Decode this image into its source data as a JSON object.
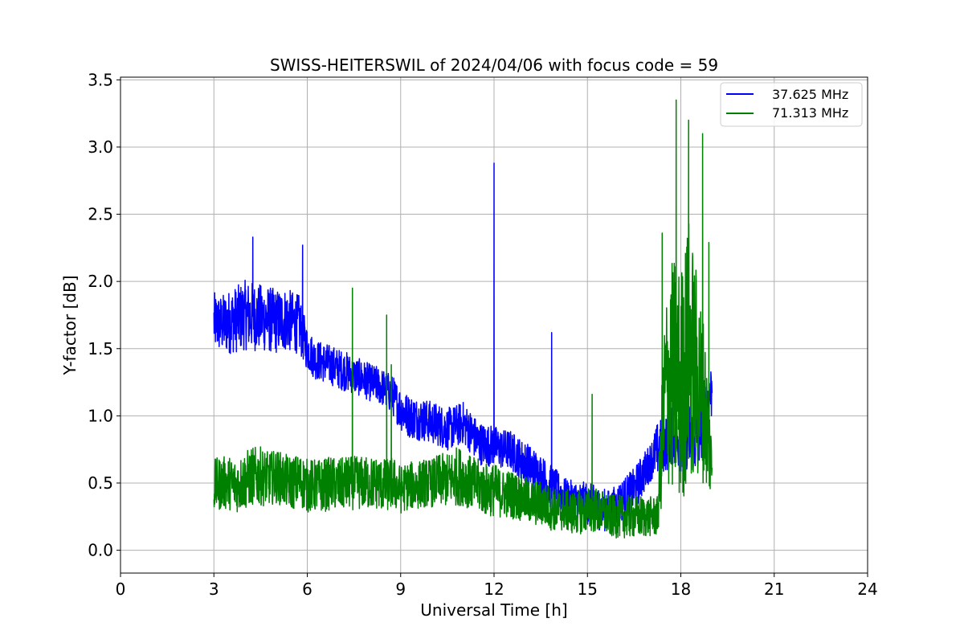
{
  "chart_data": {
    "type": "line",
    "title": "SWISS-HEITERSWIL of 2024/04/06 with focus code = 59",
    "xlabel": "Universal Time [h]",
    "ylabel": "Y-factor [dB]",
    "xlim": [
      0,
      24
    ],
    "ylim": [
      -0.17,
      3.52
    ],
    "xticks": [
      0,
      3,
      6,
      9,
      12,
      15,
      18,
      21,
      24
    ],
    "xtick_labels": [
      "0",
      "3",
      "6",
      "9",
      "12",
      "15",
      "18",
      "21",
      "24"
    ],
    "yticks": [
      0.0,
      0.5,
      1.0,
      1.5,
      2.0,
      2.5,
      3.0,
      3.5
    ],
    "ytick_labels": [
      "0.0",
      "0.5",
      "1.0",
      "1.5",
      "2.0",
      "2.5",
      "3.0",
      "3.5"
    ],
    "grid": true,
    "legend_position": "top-right",
    "series": [
      {
        "name": "37.625 MHz",
        "color": "#0000ff",
        "x": [
          3.0,
          3.25,
          3.5,
          3.75,
          4.0,
          4.25,
          4.5,
          4.75,
          5.0,
          5.25,
          5.5,
          5.75,
          6.0,
          6.25,
          6.5,
          6.75,
          7.0,
          7.25,
          7.5,
          7.75,
          8.0,
          8.25,
          8.5,
          8.75,
          9.0,
          9.25,
          9.5,
          9.75,
          10.0,
          10.25,
          10.5,
          10.75,
          11.0,
          11.25,
          11.5,
          11.75,
          12.0,
          12.25,
          12.5,
          12.75,
          13.0,
          13.25,
          13.5,
          13.75,
          14.0,
          14.25,
          14.5,
          14.75,
          15.0,
          15.25,
          15.5,
          15.75,
          16.0,
          16.25,
          16.5,
          16.75,
          17.0,
          17.25,
          17.5,
          17.75,
          18.0,
          18.25,
          18.5,
          18.75,
          19.0
        ],
        "y_mean": [
          1.7,
          1.68,
          1.7,
          1.72,
          1.75,
          1.74,
          1.73,
          1.72,
          1.7,
          1.72,
          1.7,
          1.68,
          1.5,
          1.42,
          1.4,
          1.38,
          1.35,
          1.33,
          1.3,
          1.28,
          1.25,
          1.23,
          1.2,
          1.15,
          1.05,
          1.0,
          0.98,
          0.97,
          0.95,
          0.93,
          0.9,
          0.92,
          0.95,
          0.88,
          0.8,
          0.78,
          0.78,
          0.75,
          0.75,
          0.7,
          0.65,
          0.6,
          0.55,
          0.48,
          0.45,
          0.4,
          0.38,
          0.37,
          0.35,
          0.32,
          0.3,
          0.3,
          0.35,
          0.4,
          0.45,
          0.55,
          0.65,
          0.75,
          0.8,
          0.85,
          0.8,
          0.85,
          0.8,
          1.0,
          1.2
        ],
        "spread": [
          0.22,
          0.22,
          0.24,
          0.25,
          0.26,
          0.26,
          0.25,
          0.25,
          0.24,
          0.24,
          0.23,
          0.22,
          0.16,
          0.15,
          0.15,
          0.15,
          0.15,
          0.15,
          0.14,
          0.14,
          0.14,
          0.14,
          0.14,
          0.15,
          0.16,
          0.16,
          0.16,
          0.16,
          0.16,
          0.16,
          0.16,
          0.16,
          0.16,
          0.16,
          0.16,
          0.16,
          0.15,
          0.15,
          0.15,
          0.15,
          0.16,
          0.17,
          0.17,
          0.17,
          0.15,
          0.14,
          0.14,
          0.14,
          0.16,
          0.16,
          0.16,
          0.15,
          0.16,
          0.16,
          0.16,
          0.16,
          0.14,
          0.2,
          0.22,
          0.22,
          0.22,
          0.25,
          0.25,
          0.25,
          0.22
        ],
        "spikes": [
          [
            12.0,
            2.88
          ],
          [
            13.85,
            1.62
          ],
          [
            4.25,
            2.33
          ],
          [
            5.85,
            2.27
          ]
        ]
      },
      {
        "name": "71.313 MHz",
        "color": "#008000",
        "x": [
          3.0,
          3.25,
          3.5,
          3.75,
          4.0,
          4.25,
          4.5,
          4.75,
          5.0,
          5.25,
          5.5,
          5.75,
          6.0,
          6.25,
          6.5,
          6.75,
          7.0,
          7.25,
          7.5,
          7.75,
          8.0,
          8.25,
          8.5,
          8.75,
          9.0,
          9.25,
          9.5,
          9.75,
          10.0,
          10.25,
          10.5,
          10.75,
          11.0,
          11.25,
          11.5,
          11.75,
          12.0,
          12.25,
          12.5,
          12.75,
          13.0,
          13.25,
          13.5,
          13.75,
          14.0,
          14.25,
          14.5,
          14.75,
          15.0,
          15.25,
          15.5,
          15.75,
          16.0,
          16.25,
          16.5,
          16.75,
          17.0,
          17.25,
          17.5,
          17.75,
          18.0,
          18.25,
          18.5,
          18.75,
          19.0
        ],
        "y_mean": [
          0.48,
          0.5,
          0.5,
          0.48,
          0.52,
          0.55,
          0.55,
          0.53,
          0.55,
          0.52,
          0.5,
          0.52,
          0.48,
          0.48,
          0.48,
          0.5,
          0.48,
          0.5,
          0.5,
          0.5,
          0.5,
          0.5,
          0.48,
          0.5,
          0.45,
          0.48,
          0.48,
          0.5,
          0.5,
          0.52,
          0.52,
          0.55,
          0.55,
          0.5,
          0.48,
          0.45,
          0.45,
          0.42,
          0.42,
          0.4,
          0.38,
          0.35,
          0.35,
          0.32,
          0.3,
          0.3,
          0.28,
          0.28,
          0.3,
          0.3,
          0.28,
          0.25,
          0.25,
          0.25,
          0.25,
          0.25,
          0.25,
          0.25,
          1.2,
          1.3,
          1.2,
          1.5,
          1.3,
          1.1,
          0.6
        ],
        "spread": [
          0.2,
          0.2,
          0.2,
          0.2,
          0.22,
          0.22,
          0.22,
          0.2,
          0.2,
          0.2,
          0.2,
          0.2,
          0.2,
          0.2,
          0.2,
          0.2,
          0.2,
          0.2,
          0.2,
          0.2,
          0.2,
          0.2,
          0.2,
          0.2,
          0.18,
          0.18,
          0.18,
          0.18,
          0.18,
          0.2,
          0.2,
          0.22,
          0.22,
          0.2,
          0.2,
          0.2,
          0.2,
          0.18,
          0.18,
          0.18,
          0.17,
          0.17,
          0.17,
          0.17,
          0.16,
          0.16,
          0.16,
          0.16,
          0.17,
          0.17,
          0.16,
          0.16,
          0.16,
          0.16,
          0.16,
          0.16,
          0.15,
          0.15,
          0.7,
          0.9,
          0.9,
          1.0,
          0.8,
          0.6,
          0.25
        ],
        "spikes": [
          [
            7.45,
            1.95
          ],
          [
            8.55,
            1.75
          ],
          [
            8.7,
            1.38
          ],
          [
            15.15,
            1.16
          ],
          [
            17.4,
            2.36
          ],
          [
            17.85,
            3.35
          ],
          [
            18.25,
            3.2
          ],
          [
            18.7,
            3.1
          ],
          [
            18.9,
            2.29
          ]
        ]
      }
    ]
  }
}
